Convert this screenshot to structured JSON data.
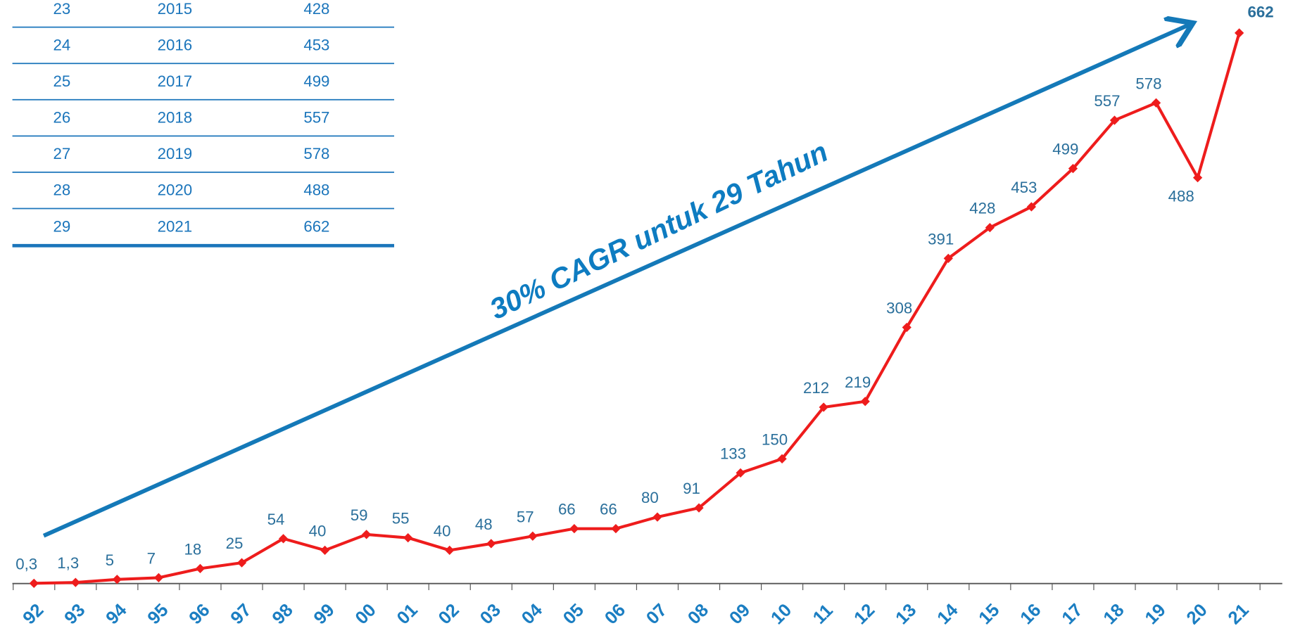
{
  "table": {
    "rows": [
      [
        "23",
        "2015",
        "428"
      ],
      [
        "24",
        "2016",
        "453"
      ],
      [
        "25",
        "2017",
        "499"
      ],
      [
        "26",
        "2018",
        "557"
      ],
      [
        "27",
        "2019",
        "578"
      ],
      [
        "28",
        "2020",
        "488"
      ],
      [
        "29",
        "2021",
        "662"
      ]
    ]
  },
  "chart_data": {
    "type": "line",
    "annotation": "30% CAGR untuk 29 Tahun",
    "color": "#ee1c1c",
    "categories": [
      "92",
      "93",
      "94",
      "95",
      "96",
      "97",
      "98",
      "99",
      "00",
      "01",
      "02",
      "03",
      "04",
      "05",
      "06",
      "07",
      "08",
      "09",
      "10",
      "11",
      "12",
      "13",
      "14",
      "15",
      "16",
      "17",
      "18",
      "19",
      "20",
      "21"
    ],
    "values": [
      0.3,
      1.3,
      5,
      7,
      18,
      25,
      54,
      40,
      59,
      55,
      40,
      48,
      57,
      66,
      66,
      80,
      91,
      133,
      150,
      212,
      219,
      308,
      391,
      428,
      453,
      499,
      557,
      578,
      488,
      662
    ],
    "value_labels": [
      "0,3",
      "1,3",
      "5",
      "7",
      "18",
      "25",
      "54",
      "40",
      "59",
      "55",
      "40",
      "48",
      "57",
      "66",
      "66",
      "80",
      "91",
      "133",
      "150",
      "212",
      "219",
      "308",
      "391",
      "428",
      "453",
      "499",
      "557",
      "578",
      "488",
      "662"
    ]
  }
}
